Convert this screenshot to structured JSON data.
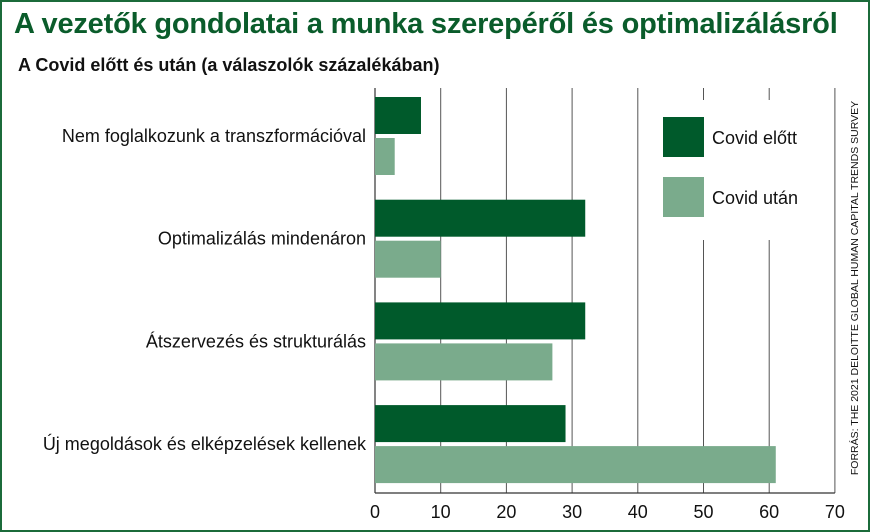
{
  "chart_data": {
    "type": "bar",
    "orientation": "horizontal",
    "title": "A vezetők gondolatai a munka szerepéről és optimalizálásról",
    "subtitle": "A Covid előtt és után (a válaszolók százalékában)",
    "categories": [
      "Nem foglalkozunk a transzformációval",
      "Optimalizálás mindenáron",
      "Átszervezés és strukturálás",
      "Új megoldások és elképzelések kellenek"
    ],
    "series": [
      {
        "name": "Covid előtt",
        "color": "#005a2b",
        "values": [
          7,
          32,
          32,
          29
        ]
      },
      {
        "name": "Covid után",
        "color": "#7aab8c",
        "values": [
          3,
          10,
          27,
          61
        ]
      }
    ],
    "xlim": [
      0,
      70
    ],
    "xticks": [
      "0",
      "10",
      "20",
      "30",
      "40",
      "50",
      "60",
      "70"
    ],
    "grid": true,
    "legend_position": "top-right",
    "source": "FORRÁS: THE 2021 DELOITTE GLOBAL HUMAN CAPITAL TRENDS SURVEY"
  }
}
